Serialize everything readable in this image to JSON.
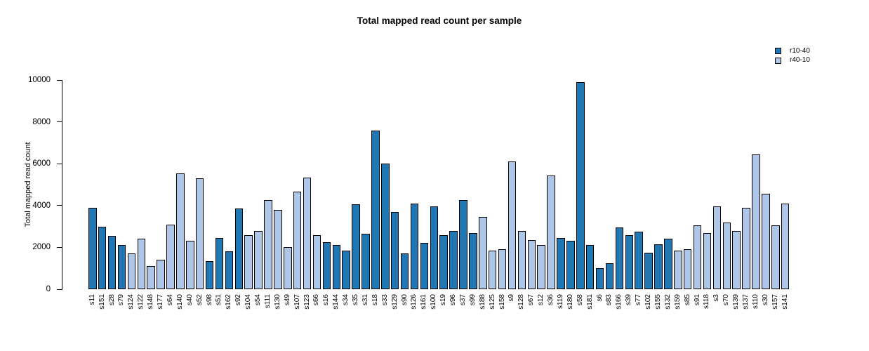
{
  "chart_data": {
    "type": "bar",
    "title": "Total mapped read count per sample",
    "xlabel": "",
    "ylabel": "Total mapped read count",
    "ylim": [
      0,
      10000
    ],
    "yticks": [
      0,
      2000,
      4000,
      6000,
      8000,
      10000
    ],
    "grid": false,
    "bar_edge_color": "#000000",
    "legend": {
      "position": "top-right",
      "entries": [
        {
          "label": "r10-40",
          "color": "#1F77B4"
        },
        {
          "label": "r40-10",
          "color": "#AEC7E8"
        }
      ]
    },
    "series_colors": {
      "r10-40": "#1F77B4",
      "r40-10": "#AEC7E8"
    },
    "samples": [
      {
        "label": "s11",
        "value": 3900,
        "group": "r10-40"
      },
      {
        "label": "s151",
        "value": 3000,
        "group": "r10-40"
      },
      {
        "label": "s28",
        "value": 2550,
        "group": "r10-40"
      },
      {
        "label": "s79",
        "value": 2100,
        "group": "r10-40"
      },
      {
        "label": "s124",
        "value": 1700,
        "group": "r40-10"
      },
      {
        "label": "s122",
        "value": 2400,
        "group": "r40-10"
      },
      {
        "label": "s148",
        "value": 1100,
        "group": "r40-10"
      },
      {
        "label": "s177",
        "value": 1400,
        "group": "r40-10"
      },
      {
        "label": "s64",
        "value": 3100,
        "group": "r40-10"
      },
      {
        "label": "s140",
        "value": 5550,
        "group": "r40-10"
      },
      {
        "label": "s40",
        "value": 2300,
        "group": "r40-10"
      },
      {
        "label": "s52",
        "value": 5300,
        "group": "r40-10"
      },
      {
        "label": "s98",
        "value": 1350,
        "group": "r10-40"
      },
      {
        "label": "s51",
        "value": 2450,
        "group": "r10-40"
      },
      {
        "label": "s162",
        "value": 1800,
        "group": "r10-40"
      },
      {
        "label": "s92",
        "value": 3850,
        "group": "r10-40"
      },
      {
        "label": "s104",
        "value": 2600,
        "group": "r40-10"
      },
      {
        "label": "s54",
        "value": 2800,
        "group": "r40-10"
      },
      {
        "label": "s111",
        "value": 4250,
        "group": "r40-10"
      },
      {
        "label": "s130",
        "value": 3800,
        "group": "r40-10"
      },
      {
        "label": "s49",
        "value": 2000,
        "group": "r40-10"
      },
      {
        "label": "s107",
        "value": 4650,
        "group": "r40-10"
      },
      {
        "label": "s123",
        "value": 5350,
        "group": "r40-10"
      },
      {
        "label": "s66",
        "value": 2600,
        "group": "r40-10"
      },
      {
        "label": "s16",
        "value": 2250,
        "group": "r10-40"
      },
      {
        "label": "s144",
        "value": 2100,
        "group": "r10-40"
      },
      {
        "label": "s34",
        "value": 1850,
        "group": "r10-40"
      },
      {
        "label": "s35",
        "value": 4050,
        "group": "r10-40"
      },
      {
        "label": "s31",
        "value": 2650,
        "group": "r10-40"
      },
      {
        "label": "s18",
        "value": 7600,
        "group": "r10-40"
      },
      {
        "label": "s33",
        "value": 6000,
        "group": "r10-40"
      },
      {
        "label": "s129",
        "value": 3700,
        "group": "r10-40"
      },
      {
        "label": "s90",
        "value": 1700,
        "group": "r10-40"
      },
      {
        "label": "s126",
        "value": 4100,
        "group": "r10-40"
      },
      {
        "label": "s161",
        "value": 2200,
        "group": "r10-40"
      },
      {
        "label": "s100",
        "value": 3950,
        "group": "r10-40"
      },
      {
        "label": "s19",
        "value": 2600,
        "group": "r10-40"
      },
      {
        "label": "s96",
        "value": 2800,
        "group": "r10-40"
      },
      {
        "label": "s37",
        "value": 4250,
        "group": "r10-40"
      },
      {
        "label": "s99",
        "value": 2700,
        "group": "r10-40"
      },
      {
        "label": "s188",
        "value": 3450,
        "group": "r40-10"
      },
      {
        "label": "s125",
        "value": 1850,
        "group": "r40-10"
      },
      {
        "label": "s158",
        "value": 1900,
        "group": "r40-10"
      },
      {
        "label": "s9",
        "value": 6100,
        "group": "r40-10"
      },
      {
        "label": "s128",
        "value": 2800,
        "group": "r40-10"
      },
      {
        "label": "s67",
        "value": 2350,
        "group": "r40-10"
      },
      {
        "label": "s12",
        "value": 2100,
        "group": "r40-10"
      },
      {
        "label": "s36",
        "value": 5450,
        "group": "r40-10"
      },
      {
        "label": "s119",
        "value": 2450,
        "group": "r10-40"
      },
      {
        "label": "s180",
        "value": 2300,
        "group": "r10-40"
      },
      {
        "label": "s58",
        "value": 9900,
        "group": "r10-40"
      },
      {
        "label": "s181",
        "value": 2100,
        "group": "r10-40"
      },
      {
        "label": "s6",
        "value": 1000,
        "group": "r10-40"
      },
      {
        "label": "s83",
        "value": 1250,
        "group": "r10-40"
      },
      {
        "label": "s166",
        "value": 2950,
        "group": "r10-40"
      },
      {
        "label": "s39",
        "value": 2600,
        "group": "r10-40"
      },
      {
        "label": "s77",
        "value": 2750,
        "group": "r10-40"
      },
      {
        "label": "s102",
        "value": 1750,
        "group": "r10-40"
      },
      {
        "label": "s155",
        "value": 2150,
        "group": "r10-40"
      },
      {
        "label": "s132",
        "value": 2400,
        "group": "r10-40"
      },
      {
        "label": "s159",
        "value": 1850,
        "group": "r40-10"
      },
      {
        "label": "s85",
        "value": 1900,
        "group": "r40-10"
      },
      {
        "label": "s91",
        "value": 3050,
        "group": "r40-10"
      },
      {
        "label": "s118",
        "value": 2700,
        "group": "r40-10"
      },
      {
        "label": "s3",
        "value": 3950,
        "group": "r40-10"
      },
      {
        "label": "s70",
        "value": 3200,
        "group": "r40-10"
      },
      {
        "label": "s139",
        "value": 2800,
        "group": "r40-10"
      },
      {
        "label": "s137",
        "value": 3900,
        "group": "r40-10"
      },
      {
        "label": "s110",
        "value": 6450,
        "group": "r40-10"
      },
      {
        "label": "s30",
        "value": 4550,
        "group": "r40-10"
      },
      {
        "label": "s157",
        "value": 3050,
        "group": "r40-10"
      },
      {
        "label": "s141",
        "value": 4100,
        "group": "r40-10"
      }
    ]
  }
}
